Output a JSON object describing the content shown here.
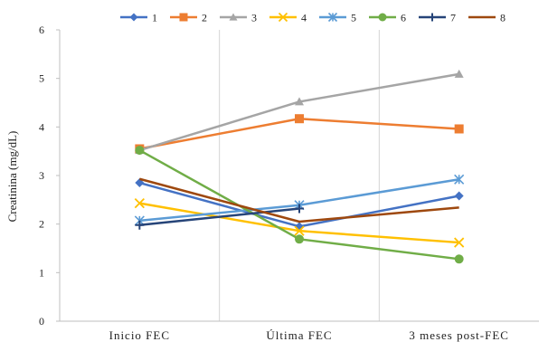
{
  "chart_data": {
    "type": "line",
    "ylabel": "Creatinina (mg/dL)",
    "xlabel": "",
    "categories": [
      "Inicio FEC",
      "Última FEC",
      "3 meses post-FEC"
    ],
    "ylim": [
      0,
      6
    ],
    "yticks": [
      0,
      1,
      2,
      3,
      4,
      5,
      6
    ],
    "grid": "vertical category separators",
    "legend": "top",
    "series": [
      {
        "name": "1",
        "color": "#4472C4",
        "marker": "diamond",
        "values": [
          2.85,
          1.95,
          2.58
        ]
      },
      {
        "name": "2",
        "color": "#ED7D31",
        "marker": "square",
        "values": [
          3.55,
          4.17,
          3.96
        ]
      },
      {
        "name": "3",
        "color": "#A5A5A5",
        "marker": "triangle",
        "values": [
          3.52,
          4.52,
          5.09
        ]
      },
      {
        "name": "4",
        "color": "#FFC000",
        "marker": "x",
        "values": [
          2.43,
          1.86,
          1.62
        ]
      },
      {
        "name": "5",
        "color": "#5B9BD5",
        "marker": "asterisk",
        "values": [
          2.07,
          2.39,
          2.92
        ]
      },
      {
        "name": "6",
        "color": "#70AD47",
        "marker": "circle",
        "values": [
          3.52,
          1.69,
          1.28
        ]
      },
      {
        "name": "7",
        "color": "#264478",
        "marker": "plus",
        "values": [
          1.98,
          2.32,
          null
        ]
      },
      {
        "name": "8",
        "color": "#9E480E",
        "marker": "none",
        "values": [
          2.93,
          2.05,
          2.34
        ]
      }
    ]
  }
}
